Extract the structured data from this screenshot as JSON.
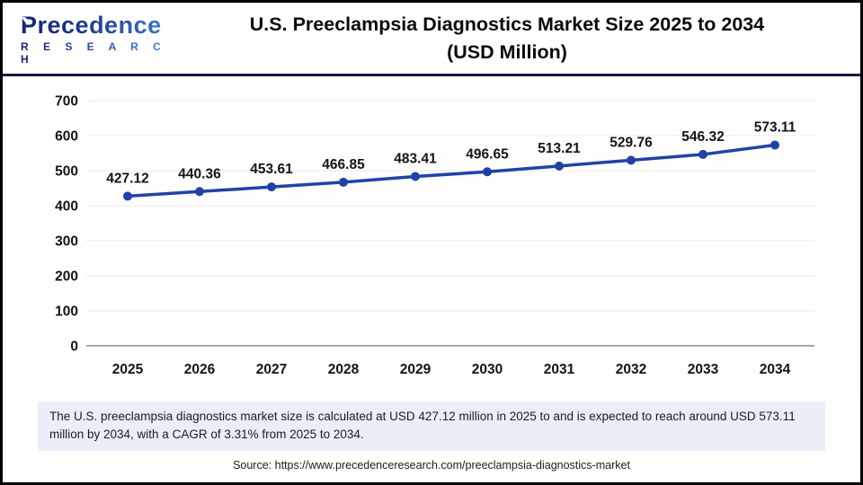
{
  "header": {
    "logo_brand": "Precedence",
    "logo_sub": "R E S E A R C H",
    "title_line1": "U.S. Preeclampsia Diagnostics Market Size 2025 to 2034",
    "title_line2": "(USD Million)"
  },
  "chart_data": {
    "type": "line",
    "title": "U.S. Preeclampsia Diagnostics Market Size 2025 to 2034 (USD Million)",
    "x": [
      "2025",
      "2026",
      "2027",
      "2028",
      "2029",
      "2030",
      "2031",
      "2032",
      "2033",
      "2034"
    ],
    "series": [
      {
        "name": "U.S. Preeclampsia Diagnostics Market Size (USD Million)",
        "values": [
          427.12,
          440.36,
          453.61,
          466.85,
          483.41,
          496.65,
          513.21,
          529.76,
          546.32,
          573.11
        ]
      }
    ],
    "data_labels": [
      "427.12",
      "440.36",
      "453.61",
      "466.85",
      "483.41",
      "496.65",
      "513.21",
      "529.76",
      "546.32",
      "573.11"
    ],
    "xlabel": "",
    "ylabel": "",
    "ylim": [
      0,
      700
    ],
    "ytick_step": 100,
    "grid": true,
    "legend_position": "none",
    "line_color": "#2042a8",
    "marker_color": "#2042a8",
    "grid_color": "#ebebeb",
    "zero_line_color": "#a6a6a6",
    "text_color": "#141414"
  },
  "footnote_text": "The U.S. preeclampsia diagnostics market size is calculated at USD 427.12 million in 2025 to and is expected to reach around USD 573.11 million by 2034, with a CAGR of 3.31% from 2025 to 2034.",
  "source_text": "Source: https://www.precedenceresearch.com/preeclampsia-diagnostics-market",
  "colors": {
    "accent_navy": "#141d3f",
    "footnote_bg": "#e9eef9",
    "line_blue": "#2042a8"
  }
}
